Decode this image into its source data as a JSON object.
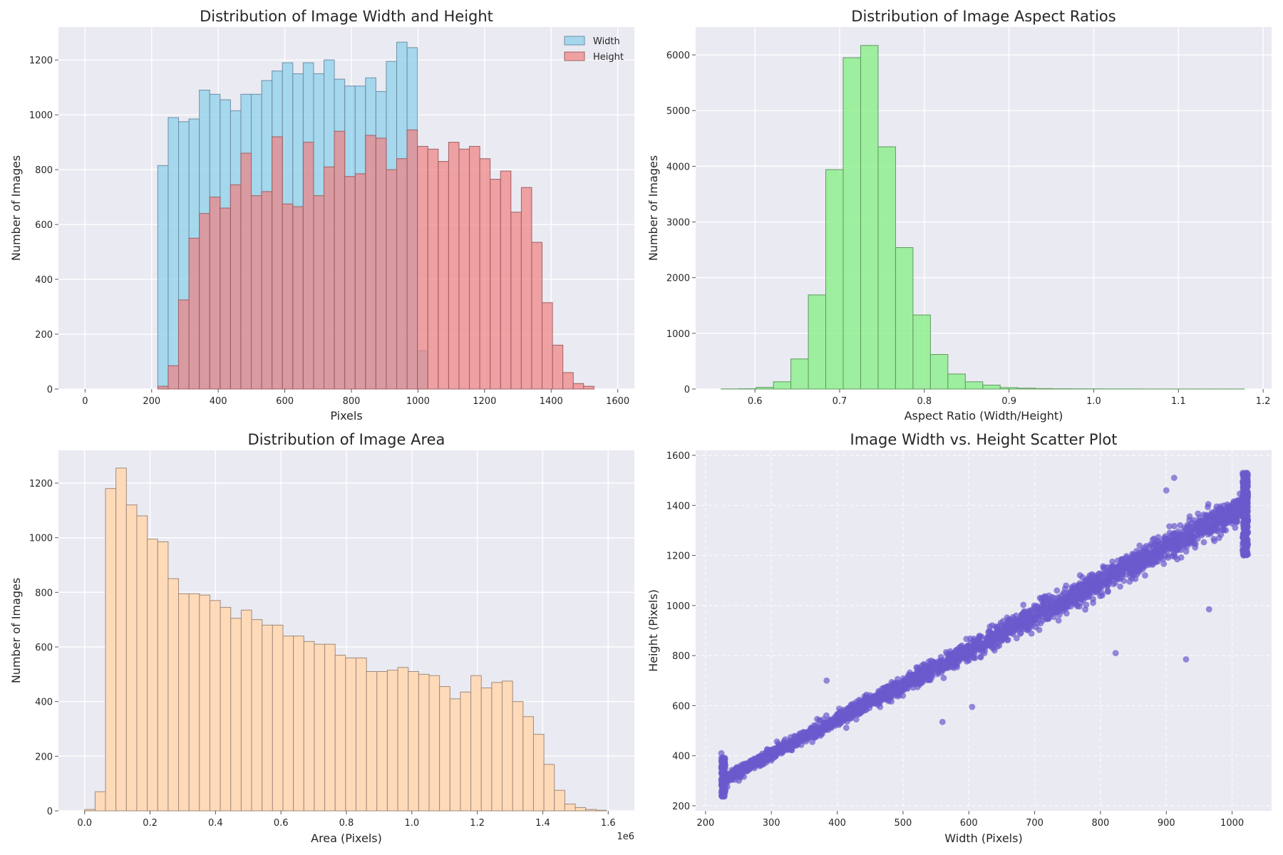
{
  "chart_data": [
    {
      "id": "dims",
      "type": "bar",
      "title": "Distribution of Image Width and Height",
      "xlabel": "Pixels",
      "ylabel": "Number of Images",
      "xlim": [
        -80,
        1650
      ],
      "ylim": [
        0,
        1320
      ],
      "xticks": [
        0,
        200,
        400,
        600,
        800,
        1000,
        1200,
        1400,
        1600
      ],
      "yticks": [
        0,
        200,
        400,
        600,
        800,
        1000,
        1200
      ],
      "grid": true,
      "legend": "top-right",
      "bin_start": 0,
      "bin_width": 31.2,
      "series": [
        {
          "name": "Width",
          "color": "#87ceeb",
          "edge": "#6f8fa5",
          "opacity": 0.7,
          "start_bin": 7,
          "values": [
            815,
            990,
            975,
            985,
            1090,
            1075,
            1055,
            1015,
            1075,
            1075,
            1125,
            1160,
            1190,
            1150,
            1190,
            1150,
            1200,
            1130,
            1105,
            1105,
            1135,
            1085,
            1195,
            1265,
            1245,
            140
          ]
        },
        {
          "name": "Height",
          "color": "#f08080",
          "edge": "#a06060",
          "opacity": 0.7,
          "start_bin": 7,
          "values": [
            10,
            85,
            325,
            550,
            640,
            700,
            660,
            745,
            860,
            705,
            720,
            920,
            675,
            665,
            900,
            705,
            810,
            940,
            775,
            785,
            925,
            915,
            800,
            840,
            945,
            885,
            875,
            830,
            900,
            875,
            885,
            840,
            765,
            795,
            645,
            735,
            535,
            315,
            160,
            60,
            20,
            10
          ]
        }
      ]
    },
    {
      "id": "aspect",
      "type": "bar",
      "title": "Distribution of Image Aspect Ratios",
      "xlabel": "Aspect Ratio (Width/Height)",
      "ylabel": "Number of Images",
      "xlim": [
        0.53,
        1.21
      ],
      "ylim": [
        0,
        6500
      ],
      "xticks": [
        0.6,
        0.7,
        0.8,
        0.9,
        1.0,
        1.1,
        1.2
      ],
      "xtick_labels": [
        "0.6",
        "0.7",
        "0.8",
        "0.9",
        "1.0",
        "1.1",
        "1.2"
      ],
      "yticks": [
        0,
        1000,
        2000,
        3000,
        4000,
        5000,
        6000
      ],
      "grid": true,
      "bin_start": 0.56,
      "bin_width": 0.0206,
      "series": [
        {
          "name": "Aspect Ratio",
          "color": "#90ee90",
          "edge": "#5e9a5e",
          "opacity": 0.85,
          "start_bin": 0,
          "values": [
            2,
            5,
            30,
            130,
            540,
            1690,
            3940,
            5950,
            6170,
            4350,
            2540,
            1330,
            620,
            270,
            130,
            70,
            25,
            15,
            8,
            5,
            4,
            3,
            2,
            2,
            1,
            1,
            1,
            1,
            1,
            1
          ]
        }
      ]
    },
    {
      "id": "area",
      "type": "bar",
      "title": "Distribution of Image Area",
      "xlabel": "Area (Pixels)",
      "ylabel": "Number of Images",
      "offset_label": "1e6",
      "xlim": [
        -0.08,
        1.68
      ],
      "ylim": [
        0,
        1320
      ],
      "xticks": [
        0.0,
        0.2,
        0.4,
        0.6,
        0.8,
        1.0,
        1.2,
        1.4,
        1.6
      ],
      "xtick_labels": [
        "0.0",
        "0.2",
        "0.4",
        "0.6",
        "0.8",
        "1.0",
        "1.2",
        "1.4",
        "1.6"
      ],
      "yticks": [
        0,
        200,
        400,
        600,
        800,
        1000,
        1200
      ],
      "grid": true,
      "bin_start": 0.0,
      "bin_width": 0.0319,
      "series": [
        {
          "name": "Area",
          "color": "#ffdab9",
          "edge": "#a08a78",
          "opacity": 1,
          "start_bin": 0,
          "values": [
            5,
            70,
            1180,
            1255,
            1120,
            1080,
            995,
            985,
            850,
            795,
            795,
            790,
            770,
            745,
            705,
            735,
            700,
            680,
            680,
            640,
            640,
            620,
            610,
            610,
            570,
            560,
            560,
            510,
            510,
            515,
            525,
            510,
            500,
            495,
            455,
            410,
            435,
            495,
            450,
            470,
            475,
            400,
            345,
            280,
            170,
            75,
            25,
            12,
            5,
            2
          ]
        }
      ]
    },
    {
      "id": "scatter",
      "type": "scatter",
      "title": "Image Width vs. Height Scatter Plot",
      "xlabel": "Width (Pixels)",
      "ylabel": "Height (Pixels)",
      "xlim": [
        185,
        1060
      ],
      "ylim": [
        180,
        1620
      ],
      "xticks": [
        200,
        300,
        400,
        500,
        600,
        700,
        800,
        900,
        1000
      ],
      "yticks": [
        200,
        400,
        600,
        800,
        1000,
        1200,
        1400,
        1600
      ],
      "grid": "dashed",
      "color": "#6a5acd",
      "opacity": 0.7,
      "x_range": [
        224,
        1024
      ],
      "trend": {
        "slope": 1.38,
        "intercept": -8
      },
      "spread": 55,
      "outliers": [
        {
          "x": 930,
          "y": 785
        },
        {
          "x": 823,
          "y": 810
        },
        {
          "x": 965,
          "y": 985
        },
        {
          "x": 605,
          "y": 595
        },
        {
          "x": 560,
          "y": 535
        },
        {
          "x": 384,
          "y": 700
        },
        {
          "x": 224,
          "y": 410
        },
        {
          "x": 912,
          "y": 1510
        },
        {
          "x": 900,
          "y": 1460
        }
      ]
    }
  ]
}
